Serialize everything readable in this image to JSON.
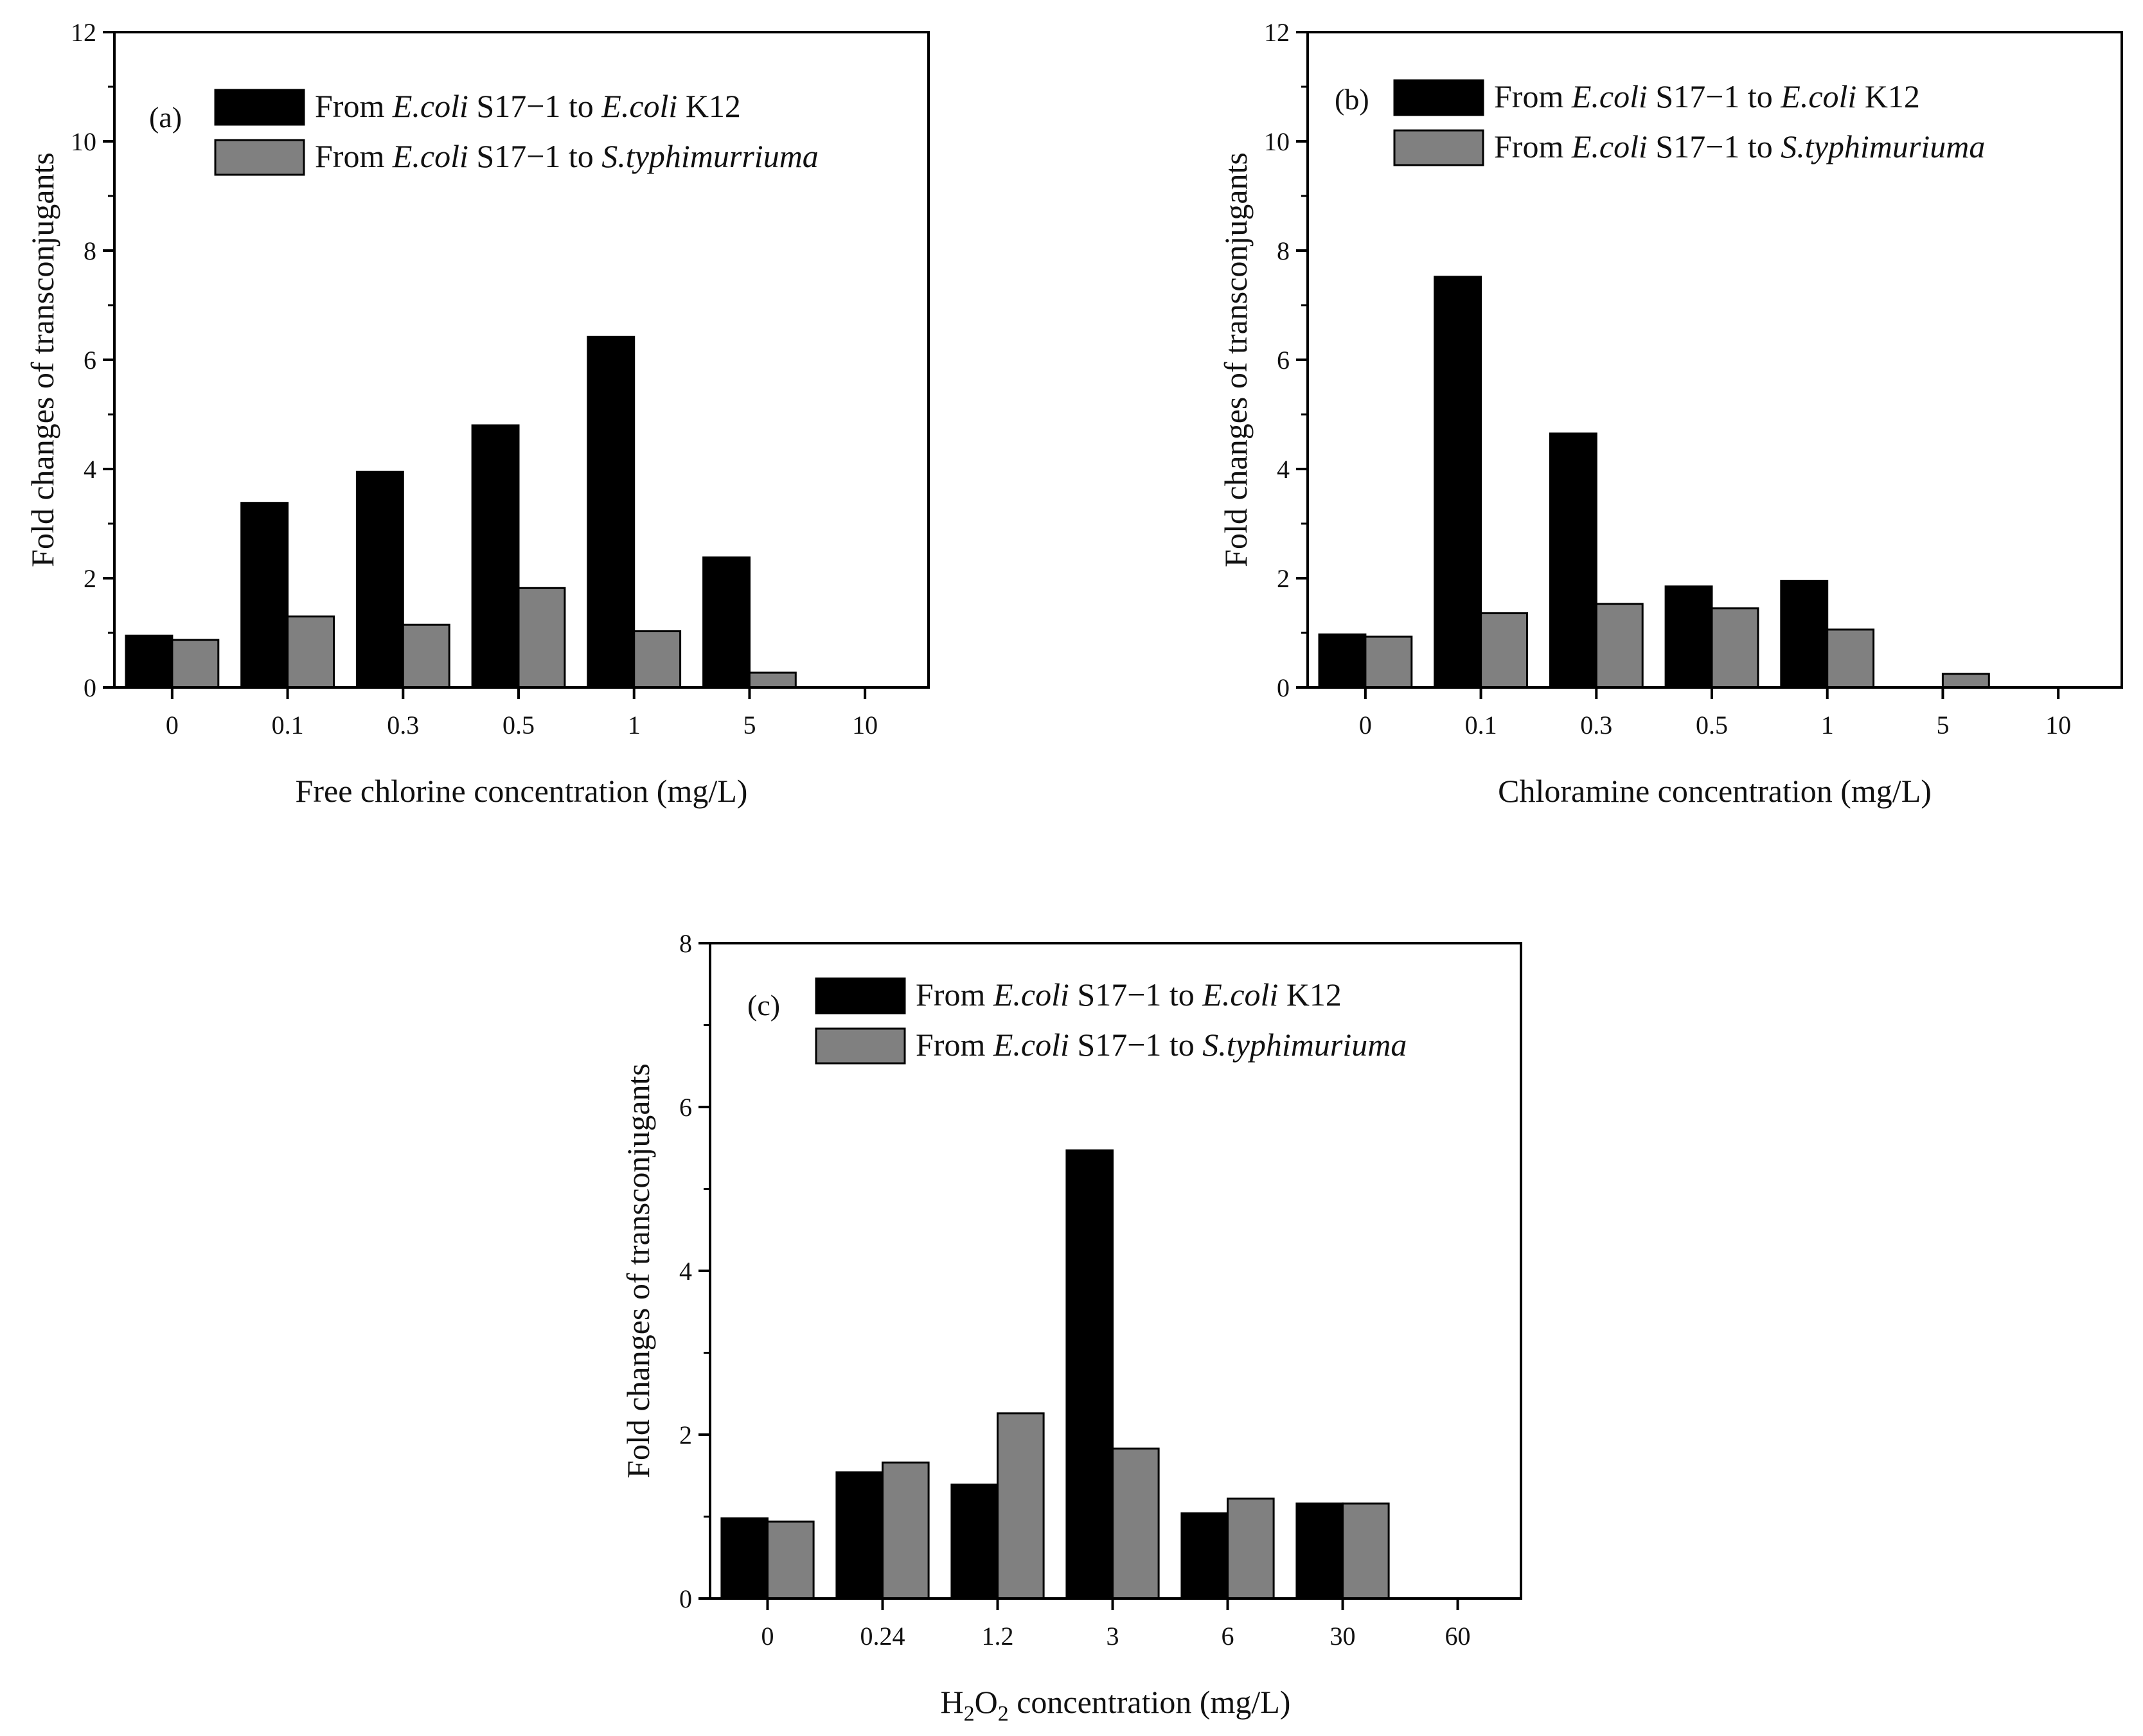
{
  "colors": {
    "series_1": "#000000",
    "series_2": "#808080",
    "axis": "#000000"
  },
  "chart_data": [
    {
      "type": "bar",
      "panel_label": "(a)",
      "categories": [
        "0",
        "0.1",
        "0.3",
        "0.5",
        "1",
        "5",
        "10"
      ],
      "xlabel": "Free chlorine concentration (mg/L)",
      "ylabel": "Fold changes of transconjugants",
      "ylim": [
        0,
        12
      ],
      "yticks": [
        "0",
        "2",
        "4",
        "6",
        "8",
        "10",
        "12"
      ],
      "legend_position": "top-left",
      "series": [
        {
          "name": "From E.coli S17−1 to E.coli K12",
          "legend_prefix": "From ",
          "legend_donor": "E.coli",
          "legend_mid": " S17−1 to ",
          "legend_recipient": "E.coli",
          "legend_suffix": " K12",
          "values": [
            0.95,
            3.38,
            3.95,
            4.8,
            6.42,
            2.38,
            0
          ]
        },
        {
          "name": "From E.coli S17−1 to S.typhimurriuma",
          "legend_prefix": "From ",
          "legend_donor": "E.coli",
          "legend_mid": " S17−1 to ",
          "legend_recipient": "S.typhimurriuma",
          "legend_suffix": "",
          "values": [
            0.87,
            1.3,
            1.15,
            1.82,
            1.03,
            0.27,
            0
          ]
        }
      ]
    },
    {
      "type": "bar",
      "panel_label": "(b)",
      "categories": [
        "0",
        "0.1",
        "0.3",
        "0.5",
        "1",
        "5",
        "10"
      ],
      "xlabel": "Chloramine concentration (mg/L)",
      "ylabel": "Fold changes of transconjugants",
      "ylim": [
        0,
        12
      ],
      "yticks": [
        "0",
        "2",
        "4",
        "6",
        "8",
        "10",
        "12"
      ],
      "legend_position": "top-left",
      "series": [
        {
          "name": "From E.coli S17−1 to E.coli K12",
          "legend_prefix": "From ",
          "legend_donor": "E.coli",
          "legend_mid": " S17−1 to ",
          "legend_recipient": "E.coli",
          "legend_suffix": " K12",
          "values": [
            0.97,
            7.52,
            4.65,
            1.85,
            1.95,
            0,
            0
          ]
        },
        {
          "name": "From E.coli S17−1 to S.typhimuriuma",
          "legend_prefix": "From ",
          "legend_donor": "E.coli",
          "legend_mid": " S17−1 to ",
          "legend_recipient": "S.typhimuriuma",
          "legend_suffix": "",
          "values": [
            0.93,
            1.36,
            1.53,
            1.45,
            1.06,
            0.25,
            0
          ]
        }
      ]
    },
    {
      "type": "bar",
      "panel_label": "(c)",
      "categories": [
        "0",
        "0.24",
        "1.2",
        "3",
        "6",
        "30",
        "60"
      ],
      "xlabel": "H2O2 concentration (mg/L)",
      "xlabel_parts": [
        "H",
        "2",
        "O",
        "2",
        " concentration (mg/L)"
      ],
      "ylabel": "Fold changes of transconjugants",
      "ylim": [
        0,
        8
      ],
      "yticks": [
        "0",
        "2",
        "4",
        "6",
        "8"
      ],
      "legend_position": "top-left",
      "series": [
        {
          "name": "From E.coli S17−1 to E.coli K12",
          "legend_prefix": "From ",
          "legend_donor": "E.coli",
          "legend_mid": " S17−1 to ",
          "legend_recipient": "E.coli",
          "legend_suffix": " K12",
          "values": [
            0.98,
            1.54,
            1.39,
            5.47,
            1.04,
            1.16,
            0
          ]
        },
        {
          "name": "From E.coli S17−1 to S.typhimuriuma",
          "legend_prefix": "From ",
          "legend_donor": "E.coli",
          "legend_mid": " S17−1 to ",
          "legend_recipient": "S.typhimuriuma",
          "legend_suffix": "",
          "values": [
            0.94,
            1.66,
            2.26,
            1.83,
            1.22,
            1.16,
            0
          ]
        }
      ]
    }
  ]
}
